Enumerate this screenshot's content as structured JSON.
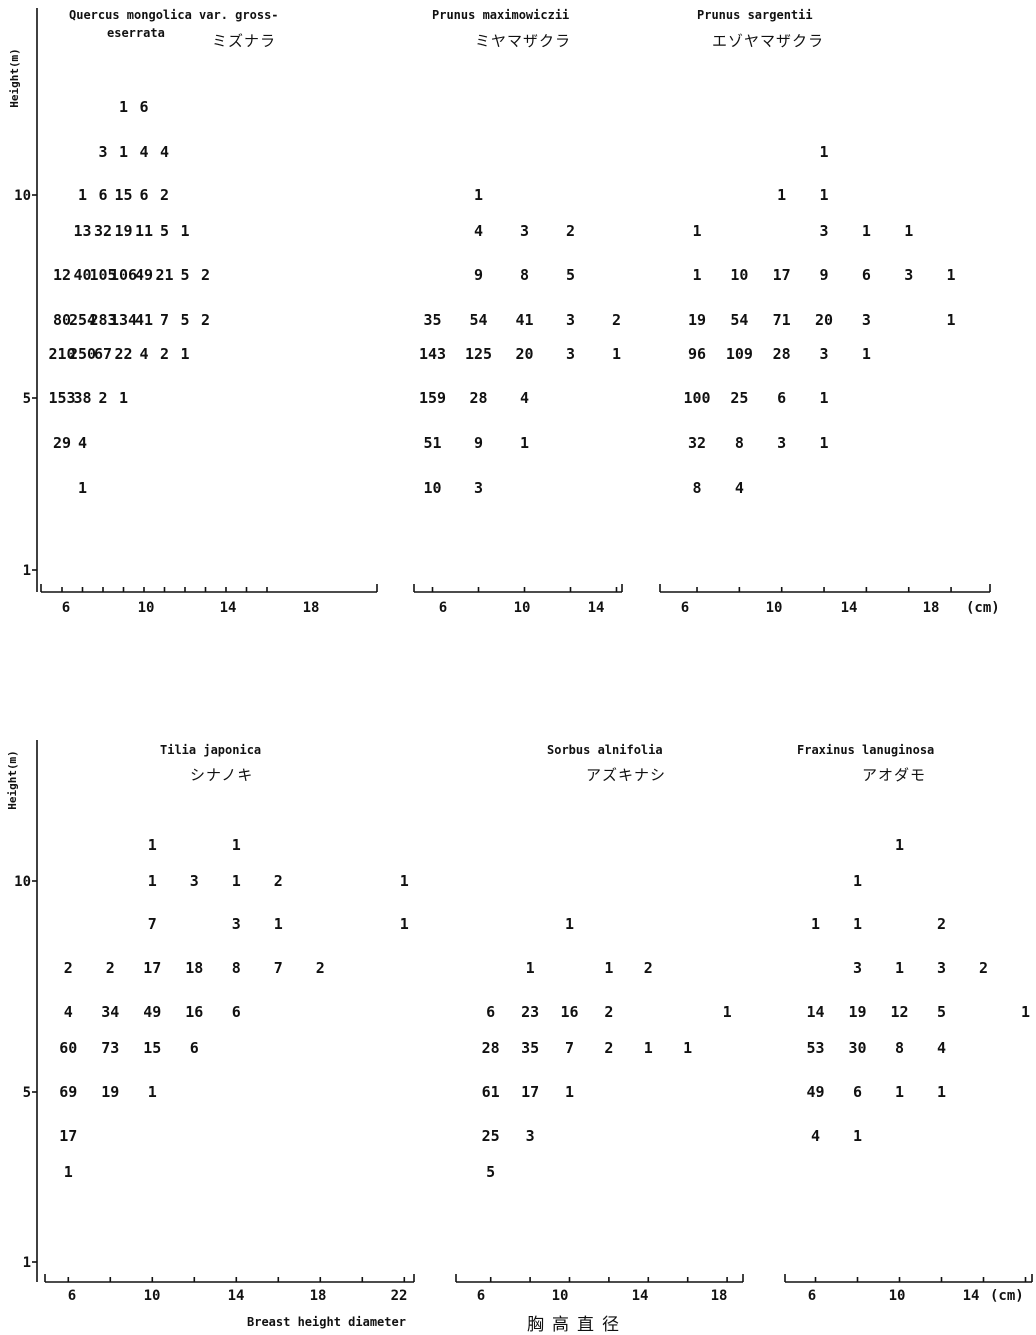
{
  "chart_data": [
    {
      "type": "table",
      "title_en": [
        "Quercus mongolica var. gross-",
        "eserrata"
      ],
      "title_ja": "ミズナラ",
      "ylabel": "Height(m)",
      "y_ticks": [
        "1",
        "5",
        "10"
      ],
      "x_ticks": [
        "6",
        "10",
        "14",
        "18"
      ],
      "x_unit": "",
      "cells": [
        {
          "x": 12,
          "y": 14,
          "v": "1"
        },
        {
          "x": 14,
          "y": 14,
          "v": "6"
        },
        {
          "x": 10,
          "y": 12,
          "v": "3"
        },
        {
          "x": 12,
          "y": 12,
          "v": "1"
        },
        {
          "x": 14,
          "y": 12,
          "v": "4"
        },
        {
          "x": 16,
          "y": 12,
          "v": "4"
        },
        {
          "x": 8,
          "y": 10,
          "v": "1"
        },
        {
          "x": 10,
          "y": 10,
          "v": "6"
        },
        {
          "x": 12,
          "y": 10,
          "v": "15"
        },
        {
          "x": 14,
          "y": 10,
          "v": "6"
        },
        {
          "x": 16,
          "y": 10,
          "v": "2"
        },
        {
          "x": 8,
          "y": 9,
          "v": "13"
        },
        {
          "x": 10,
          "y": 9,
          "v": "32"
        },
        {
          "x": 12,
          "y": 9,
          "v": "19"
        },
        {
          "x": 14,
          "y": 9,
          "v": "11"
        },
        {
          "x": 16,
          "y": 9,
          "v": "5"
        },
        {
          "x": 18,
          "y": 9,
          "v": "1"
        },
        {
          "x": 6,
          "y": 8,
          "v": "12"
        },
        {
          "x": 8,
          "y": 8,
          "v": "40"
        },
        {
          "x": 10,
          "y": 8,
          "v": "105"
        },
        {
          "x": 12,
          "y": 8,
          "v": "106"
        },
        {
          "x": 14,
          "y": 8,
          "v": "49"
        },
        {
          "x": 16,
          "y": 8,
          "v": "21"
        },
        {
          "x": 18,
          "y": 8,
          "v": "5"
        },
        {
          "x": 20,
          "y": 8,
          "v": "2"
        },
        {
          "x": 6,
          "y": 7,
          "v": "80"
        },
        {
          "x": 8,
          "y": 7,
          "v": "254"
        },
        {
          "x": 10,
          "y": 7,
          "v": "283"
        },
        {
          "x": 12,
          "y": 7,
          "v": "134"
        },
        {
          "x": 14,
          "y": 7,
          "v": "41"
        },
        {
          "x": 16,
          "y": 7,
          "v": "7"
        },
        {
          "x": 18,
          "y": 7,
          "v": "5"
        },
        {
          "x": 20,
          "y": 7,
          "v": "2"
        },
        {
          "x": 6,
          "y": 6,
          "v": "210"
        },
        {
          "x": 8,
          "y": 6,
          "v": "250"
        },
        {
          "x": 10,
          "y": 6,
          "v": "67"
        },
        {
          "x": 12,
          "y": 6,
          "v": "22"
        },
        {
          "x": 14,
          "y": 6,
          "v": "4"
        },
        {
          "x": 16,
          "y": 6,
          "v": "2"
        },
        {
          "x": 18,
          "y": 6,
          "v": "1"
        },
        {
          "x": 6,
          "y": 5,
          "v": "153"
        },
        {
          "x": 8,
          "y": 5,
          "v": "38"
        },
        {
          "x": 10,
          "y": 5,
          "v": "2"
        },
        {
          "x": 12,
          "y": 5,
          "v": "1"
        },
        {
          "x": 6,
          "y": 4,
          "v": "29"
        },
        {
          "x": 8,
          "y": 4,
          "v": "4"
        },
        {
          "x": 8,
          "y": 3,
          "v": "1"
        }
      ]
    },
    {
      "type": "table",
      "title_en": [
        "Prunus maximowiczii"
      ],
      "title_ja": "ミヤマザクラ",
      "ylabel": "",
      "y_ticks": [],
      "x_ticks": [
        "6",
        "10",
        "14"
      ],
      "x_unit": "",
      "cells": [
        {
          "x": 8,
          "y": 10,
          "v": "1"
        },
        {
          "x": 8,
          "y": 9,
          "v": "4"
        },
        {
          "x": 10,
          "y": 9,
          "v": "3"
        },
        {
          "x": 12,
          "y": 9,
          "v": "2"
        },
        {
          "x": 8,
          "y": 8,
          "v": "9"
        },
        {
          "x": 10,
          "y": 8,
          "v": "8"
        },
        {
          "x": 12,
          "y": 8,
          "v": "5"
        },
        {
          "x": 6,
          "y": 7,
          "v": "35"
        },
        {
          "x": 8,
          "y": 7,
          "v": "54"
        },
        {
          "x": 10,
          "y": 7,
          "v": "41"
        },
        {
          "x": 12,
          "y": 7,
          "v": "3"
        },
        {
          "x": 14,
          "y": 7,
          "v": "2"
        },
        {
          "x": 6,
          "y": 6,
          "v": "143"
        },
        {
          "x": 8,
          "y": 6,
          "v": "125"
        },
        {
          "x": 10,
          "y": 6,
          "v": "20"
        },
        {
          "x": 12,
          "y": 6,
          "v": "3"
        },
        {
          "x": 14,
          "y": 6,
          "v": "1"
        },
        {
          "x": 6,
          "y": 5,
          "v": "159"
        },
        {
          "x": 8,
          "y": 5,
          "v": "28"
        },
        {
          "x": 10,
          "y": 5,
          "v": "4"
        },
        {
          "x": 6,
          "y": 4,
          "v": "51"
        },
        {
          "x": 8,
          "y": 4,
          "v": "9"
        },
        {
          "x": 10,
          "y": 4,
          "v": "1"
        },
        {
          "x": 6,
          "y": 3,
          "v": "10"
        },
        {
          "x": 8,
          "y": 3,
          "v": "3"
        }
      ]
    },
    {
      "type": "table",
      "title_en": [
        "Prunus sargentii"
      ],
      "title_ja": "エゾヤマザクラ",
      "ylabel": "",
      "y_ticks": [],
      "x_ticks": [
        "6",
        "10",
        "14",
        "18"
      ],
      "x_unit": "(cm)",
      "cells": [
        {
          "x": 12,
          "y": 12,
          "v": "1"
        },
        {
          "x": 10,
          "y": 10,
          "v": "1"
        },
        {
          "x": 12,
          "y": 10,
          "v": "1"
        },
        {
          "x": 6,
          "y": 9,
          "v": "1"
        },
        {
          "x": 12,
          "y": 9,
          "v": "3"
        },
        {
          "x": 14,
          "y": 9,
          "v": "1"
        },
        {
          "x": 16,
          "y": 9,
          "v": "1"
        },
        {
          "x": 6,
          "y": 8,
          "v": "1"
        },
        {
          "x": 8,
          "y": 8,
          "v": "10"
        },
        {
          "x": 10,
          "y": 8,
          "v": "17"
        },
        {
          "x": 12,
          "y": 8,
          "v": "9"
        },
        {
          "x": 14,
          "y": 8,
          "v": "6"
        },
        {
          "x": 16,
          "y": 8,
          "v": "3"
        },
        {
          "x": 18,
          "y": 8,
          "v": "1"
        },
        {
          "x": 6,
          "y": 7,
          "v": "19"
        },
        {
          "x": 8,
          "y": 7,
          "v": "54"
        },
        {
          "x": 10,
          "y": 7,
          "v": "71"
        },
        {
          "x": 12,
          "y": 7,
          "v": "20"
        },
        {
          "x": 14,
          "y": 7,
          "v": "3"
        },
        {
          "x": 18,
          "y": 7,
          "v": "1"
        },
        {
          "x": 6,
          "y": 6,
          "v": "96"
        },
        {
          "x": 8,
          "y": 6,
          "v": "109"
        },
        {
          "x": 10,
          "y": 6,
          "v": "28"
        },
        {
          "x": 12,
          "y": 6,
          "v": "3"
        },
        {
          "x": 14,
          "y": 6,
          "v": "1"
        },
        {
          "x": 6,
          "y": 5,
          "v": "100"
        },
        {
          "x": 8,
          "y": 5,
          "v": "25"
        },
        {
          "x": 10,
          "y": 5,
          "v": "6"
        },
        {
          "x": 12,
          "y": 5,
          "v": "1"
        },
        {
          "x": 6,
          "y": 4,
          "v": "32"
        },
        {
          "x": 8,
          "y": 4,
          "v": "8"
        },
        {
          "x": 10,
          "y": 4,
          "v": "3"
        },
        {
          "x": 12,
          "y": 4,
          "v": "1"
        },
        {
          "x": 6,
          "y": 3,
          "v": "8"
        },
        {
          "x": 8,
          "y": 3,
          "v": "4"
        }
      ]
    },
    {
      "type": "table",
      "title_en": [
        "Tilia japonica"
      ],
      "title_ja": "シナノキ",
      "ylabel": "Height(m)",
      "y_ticks": [
        "1",
        "5",
        "10"
      ],
      "x_ticks": [
        "6",
        "10",
        "14",
        "18",
        "22"
      ],
      "x_unit": "",
      "cells": [
        {
          "x": 10,
          "y": 11,
          "v": "1"
        },
        {
          "x": 14,
          "y": 11,
          "v": "1"
        },
        {
          "x": 10,
          "y": 10,
          "v": "1"
        },
        {
          "x": 12,
          "y": 10,
          "v": "3"
        },
        {
          "x": 14,
          "y": 10,
          "v": "1"
        },
        {
          "x": 16,
          "y": 10,
          "v": "2"
        },
        {
          "x": 22,
          "y": 10,
          "v": "1"
        },
        {
          "x": 10,
          "y": 9,
          "v": "7"
        },
        {
          "x": 14,
          "y": 9,
          "v": "3"
        },
        {
          "x": 16,
          "y": 9,
          "v": "1"
        },
        {
          "x": 22,
          "y": 9,
          "v": "1"
        },
        {
          "x": 6,
          "y": 8,
          "v": "2"
        },
        {
          "x": 8,
          "y": 8,
          "v": "2"
        },
        {
          "x": 10,
          "y": 8,
          "v": "17"
        },
        {
          "x": 12,
          "y": 8,
          "v": "18"
        },
        {
          "x": 14,
          "y": 8,
          "v": "8"
        },
        {
          "x": 16,
          "y": 8,
          "v": "7"
        },
        {
          "x": 18,
          "y": 8,
          "v": "2"
        },
        {
          "x": 6,
          "y": 7,
          "v": "4"
        },
        {
          "x": 8,
          "y": 7,
          "v": "34"
        },
        {
          "x": 10,
          "y": 7,
          "v": "49"
        },
        {
          "x": 12,
          "y": 7,
          "v": "16"
        },
        {
          "x": 14,
          "y": 7,
          "v": "6"
        },
        {
          "x": 6,
          "y": 6,
          "v": "60"
        },
        {
          "x": 8,
          "y": 6,
          "v": "73"
        },
        {
          "x": 10,
          "y": 6,
          "v": "15"
        },
        {
          "x": 12,
          "y": 6,
          "v": "6"
        },
        {
          "x": 6,
          "y": 5,
          "v": "69"
        },
        {
          "x": 8,
          "y": 5,
          "v": "19"
        },
        {
          "x": 10,
          "y": 5,
          "v": "1"
        },
        {
          "x": 6,
          "y": 4,
          "v": "17"
        },
        {
          "x": 6,
          "y": 3,
          "v": "1"
        }
      ]
    },
    {
      "type": "table",
      "title_en": [
        "Sorbus alnifolia"
      ],
      "title_ja": "アズキナシ",
      "ylabel": "",
      "y_ticks": [],
      "x_ticks": [
        "6",
        "10",
        "14",
        "18"
      ],
      "x_unit": "",
      "cells": [
        {
          "x": 10,
          "y": 9,
          "v": "1"
        },
        {
          "x": 8,
          "y": 8,
          "v": "1"
        },
        {
          "x": 12,
          "y": 8,
          "v": "1"
        },
        {
          "x": 14,
          "y": 8,
          "v": "2"
        },
        {
          "x": 6,
          "y": 7,
          "v": "6"
        },
        {
          "x": 8,
          "y": 7,
          "v": "23"
        },
        {
          "x": 10,
          "y": 7,
          "v": "16"
        },
        {
          "x": 12,
          "y": 7,
          "v": "2"
        },
        {
          "x": 18,
          "y": 7,
          "v": "1"
        },
        {
          "x": 6,
          "y": 6,
          "v": "28"
        },
        {
          "x": 8,
          "y": 6,
          "v": "35"
        },
        {
          "x": 10,
          "y": 6,
          "v": "7"
        },
        {
          "x": 12,
          "y": 6,
          "v": "2"
        },
        {
          "x": 14,
          "y": 6,
          "v": "1"
        },
        {
          "x": 16,
          "y": 6,
          "v": "1"
        },
        {
          "x": 6,
          "y": 5,
          "v": "61"
        },
        {
          "x": 8,
          "y": 5,
          "v": "17"
        },
        {
          "x": 10,
          "y": 5,
          "v": "1"
        },
        {
          "x": 6,
          "y": 4,
          "v": "25"
        },
        {
          "x": 8,
          "y": 4,
          "v": "3"
        },
        {
          "x": 6,
          "y": 3,
          "v": "5"
        }
      ]
    },
    {
      "type": "table",
      "title_en": [
        "Fraxinus lanuginosa"
      ],
      "title_ja": "アオダモ",
      "ylabel": "",
      "y_ticks": [],
      "x_ticks": [
        "6",
        "10",
        "14"
      ],
      "x_unit": "(cm)",
      "cells": [
        {
          "x": 10,
          "y": 11,
          "v": "1"
        },
        {
          "x": 8,
          "y": 10,
          "v": "1"
        },
        {
          "x": 6,
          "y": 9,
          "v": "1"
        },
        {
          "x": 8,
          "y": 9,
          "v": "1"
        },
        {
          "x": 12,
          "y": 9,
          "v": "2"
        },
        {
          "x": 8,
          "y": 8,
          "v": "3"
        },
        {
          "x": 10,
          "y": 8,
          "v": "1"
        },
        {
          "x": 12,
          "y": 8,
          "v": "3"
        },
        {
          "x": 14,
          "y": 8,
          "v": "2"
        },
        {
          "x": 6,
          "y": 7,
          "v": "14"
        },
        {
          "x": 8,
          "y": 7,
          "v": "19"
        },
        {
          "x": 10,
          "y": 7,
          "v": "12"
        },
        {
          "x": 12,
          "y": 7,
          "v": "5"
        },
        {
          "x": 16,
          "y": 7,
          "v": "1"
        },
        {
          "x": 6,
          "y": 6,
          "v": "53"
        },
        {
          "x": 8,
          "y": 6,
          "v": "30"
        },
        {
          "x": 10,
          "y": 6,
          "v": "8"
        },
        {
          "x": 12,
          "y": 6,
          "v": "4"
        },
        {
          "x": 6,
          "y": 5,
          "v": "49"
        },
        {
          "x": 8,
          "y": 5,
          "v": "6"
        },
        {
          "x": 10,
          "y": 5,
          "v": "1"
        },
        {
          "x": 12,
          "y": 5,
          "v": "1"
        },
        {
          "x": 6,
          "y": 4,
          "v": "4"
        },
        {
          "x": 8,
          "y": 4,
          "v": "1"
        }
      ]
    }
  ],
  "footer": {
    "xlabel_en": "Breast height diameter",
    "xlabel_ja": "胸高直径"
  }
}
